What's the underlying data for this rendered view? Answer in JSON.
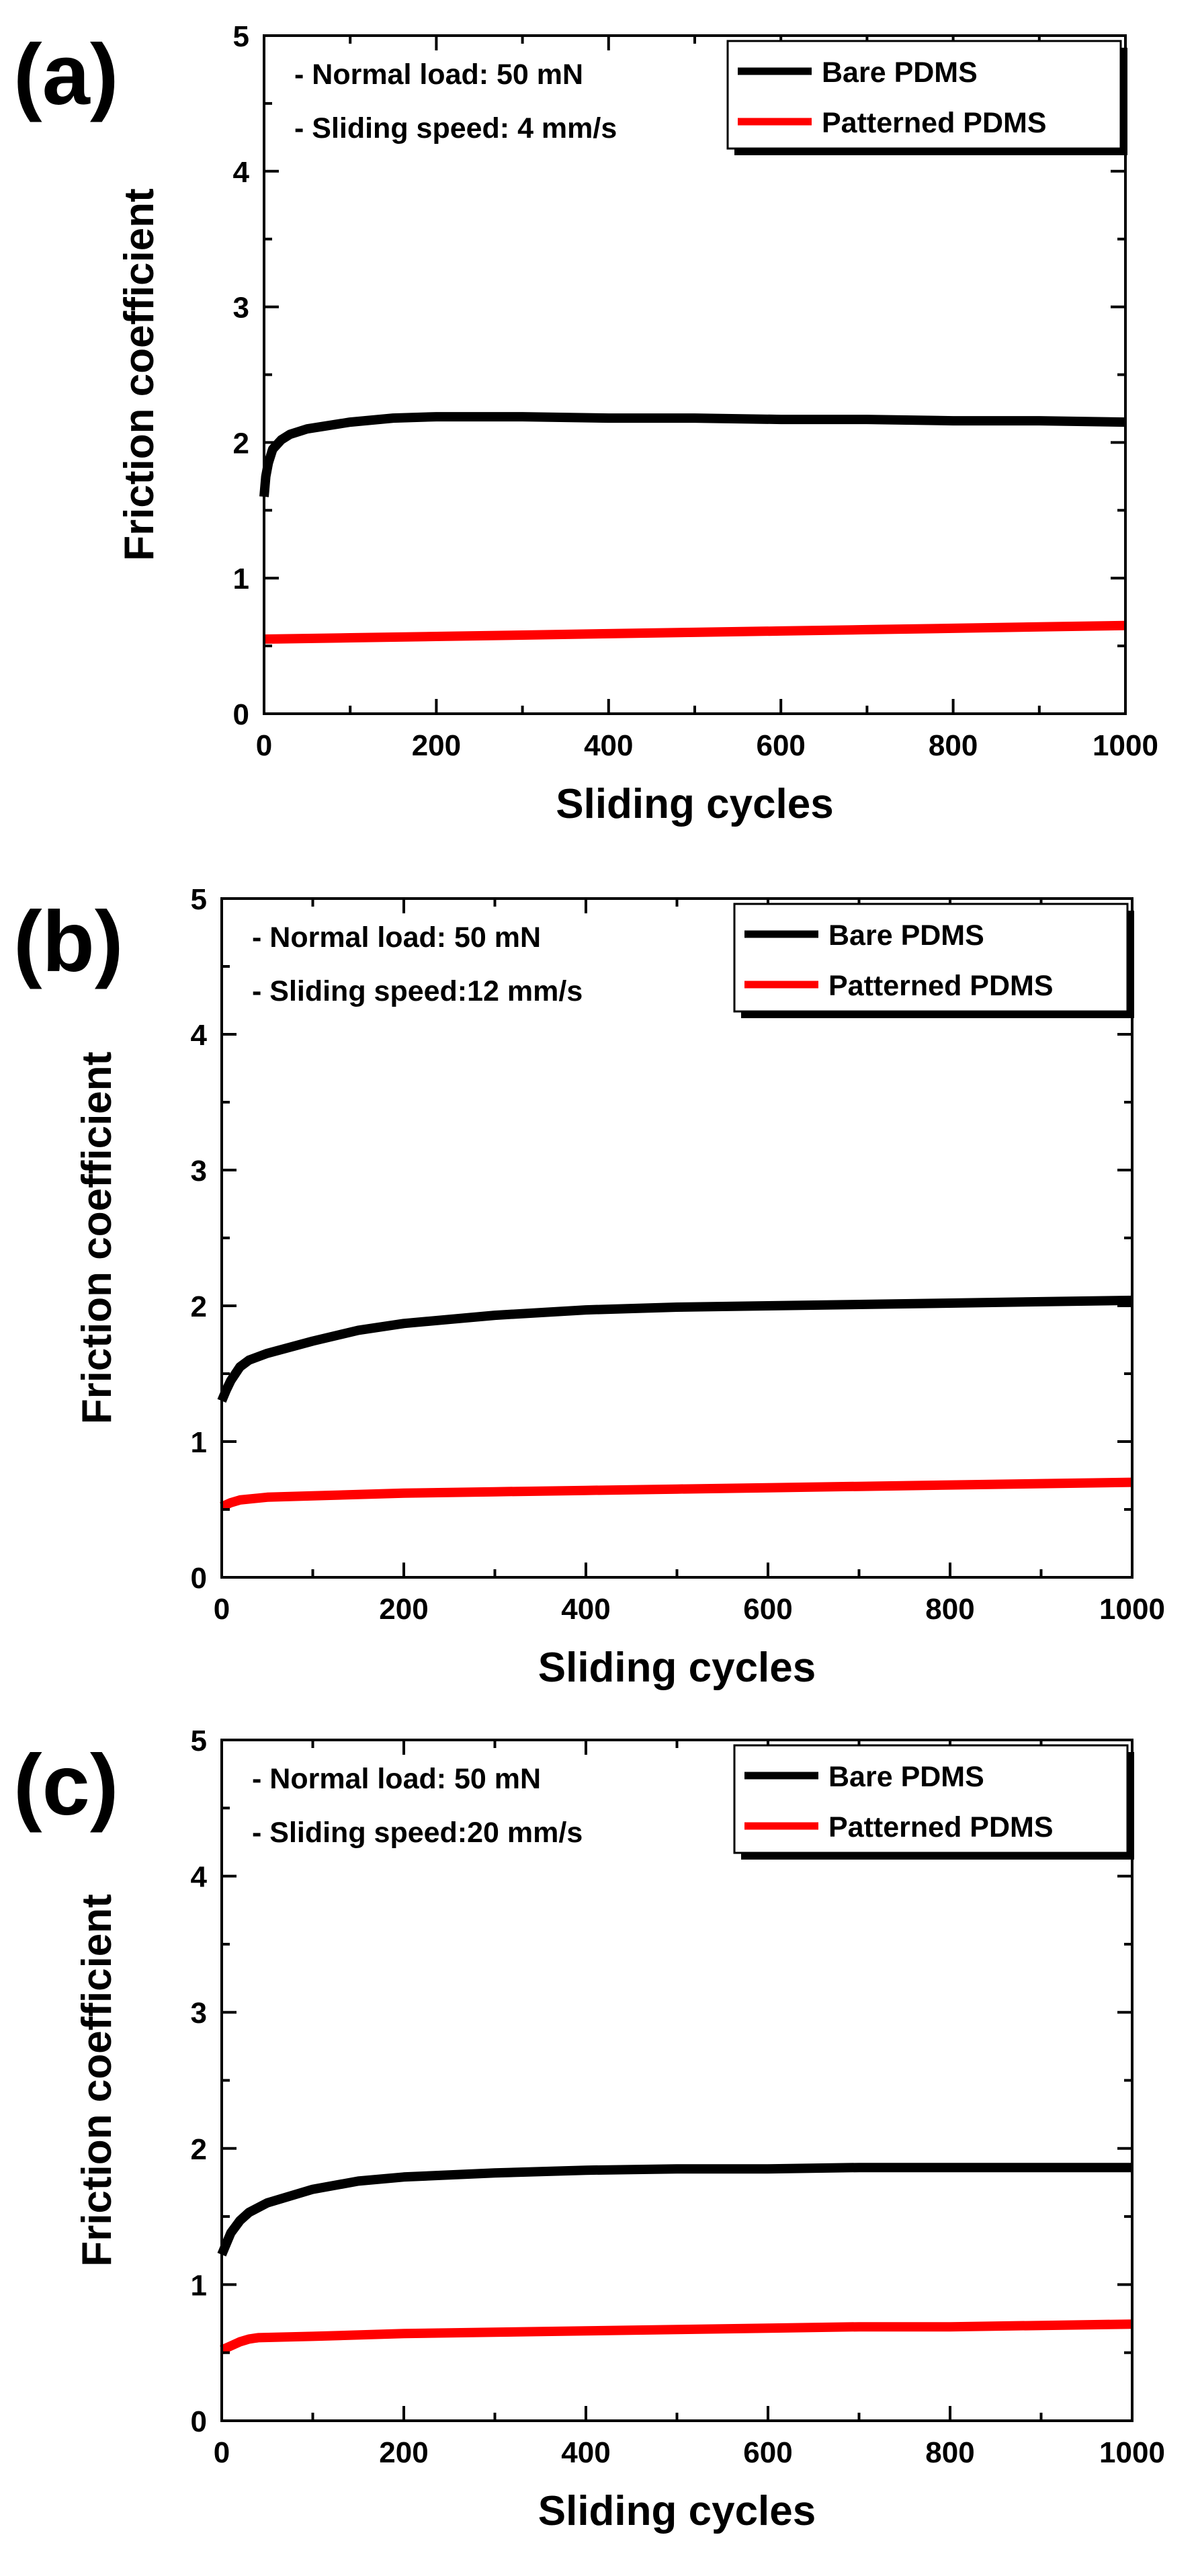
{
  "chart_data": [
    {
      "type": "line",
      "panel_label": "(a)",
      "title": "",
      "xlabel": "Sliding cycles",
      "ylabel": "Friction coefficient",
      "xlim": [
        0,
        1000
      ],
      "ylim": [
        0,
        5
      ],
      "xticks": [
        0,
        200,
        400,
        600,
        800,
        1000
      ],
      "yticks": [
        0,
        1,
        2,
        3,
        4,
        5
      ],
      "annotations": [
        "- Normal load: 50 mN",
        "- Sliding speed: 4 mm/s"
      ],
      "legend_position": "top-right",
      "series": [
        {
          "name": "Bare PDMS",
          "color": "#000000",
          "x": [
            0,
            2,
            5,
            10,
            20,
            30,
            50,
            100,
            150,
            200,
            300,
            400,
            500,
            600,
            700,
            800,
            900,
            1000
          ],
          "y": [
            1.6,
            1.75,
            1.85,
            1.95,
            2.02,
            2.06,
            2.1,
            2.15,
            2.18,
            2.19,
            2.19,
            2.18,
            2.18,
            2.17,
            2.17,
            2.16,
            2.16,
            2.15
          ]
        },
        {
          "name": "Patterned PDMS",
          "color": "#ff0000",
          "x": [
            0,
            100,
            200,
            300,
            400,
            500,
            600,
            700,
            800,
            900,
            1000
          ],
          "y": [
            0.55,
            0.56,
            0.57,
            0.58,
            0.59,
            0.6,
            0.61,
            0.62,
            0.63,
            0.64,
            0.65
          ]
        }
      ]
    },
    {
      "type": "line",
      "panel_label": "(b)",
      "title": "",
      "xlabel": "Sliding cycles",
      "ylabel": "Friction coefficient",
      "xlim": [
        0,
        1000
      ],
      "ylim": [
        0,
        5
      ],
      "xticks": [
        0,
        200,
        400,
        600,
        800,
        1000
      ],
      "yticks": [
        0,
        1,
        2,
        3,
        4,
        5
      ],
      "annotations": [
        "- Normal load: 50 mN",
        "- Sliding speed:12 mm/s"
      ],
      "legend_position": "top-right",
      "series": [
        {
          "name": "Bare PDMS",
          "color": "#000000",
          "x": [
            0,
            5,
            10,
            20,
            30,
            50,
            100,
            150,
            200,
            250,
            300,
            400,
            500,
            600,
            700,
            800,
            900,
            1000
          ],
          "y": [
            1.3,
            1.38,
            1.45,
            1.55,
            1.6,
            1.65,
            1.74,
            1.82,
            1.87,
            1.9,
            1.93,
            1.97,
            1.99,
            2.0,
            2.01,
            2.02,
            2.03,
            2.04
          ]
        },
        {
          "name": "Patterned PDMS",
          "color": "#ff0000",
          "x": [
            0,
            10,
            20,
            50,
            100,
            200,
            300,
            400,
            500,
            600,
            700,
            800,
            900,
            1000
          ],
          "y": [
            0.52,
            0.55,
            0.57,
            0.59,
            0.6,
            0.62,
            0.63,
            0.64,
            0.65,
            0.66,
            0.67,
            0.68,
            0.69,
            0.7
          ]
        }
      ]
    },
    {
      "type": "line",
      "panel_label": "(c)",
      "title": "",
      "xlabel": "Sliding cycles",
      "ylabel": "Friction coefficient",
      "xlim": [
        0,
        1000
      ],
      "ylim": [
        0,
        5
      ],
      "xticks": [
        0,
        200,
        400,
        600,
        800,
        1000
      ],
      "yticks": [
        0,
        1,
        2,
        3,
        4,
        5
      ],
      "annotations": [
        "- Normal load: 50 mN",
        "- Sliding speed:20 mm/s"
      ],
      "legend_position": "top-right",
      "series": [
        {
          "name": "Bare PDMS",
          "color": "#000000",
          "x": [
            0,
            5,
            10,
            20,
            30,
            50,
            100,
            150,
            200,
            300,
            400,
            500,
            600,
            700,
            800,
            900,
            1000
          ],
          "y": [
            1.22,
            1.3,
            1.38,
            1.47,
            1.53,
            1.6,
            1.7,
            1.76,
            1.79,
            1.82,
            1.84,
            1.85,
            1.85,
            1.86,
            1.86,
            1.86,
            1.86
          ]
        },
        {
          "name": "Patterned PDMS",
          "color": "#ff0000",
          "x": [
            0,
            10,
            20,
            30,
            40,
            100,
            200,
            300,
            400,
            500,
            600,
            700,
            800,
            900,
            1000
          ],
          "y": [
            0.52,
            0.55,
            0.58,
            0.6,
            0.61,
            0.62,
            0.64,
            0.65,
            0.66,
            0.67,
            0.68,
            0.69,
            0.69,
            0.7,
            0.71
          ]
        }
      ]
    }
  ]
}
